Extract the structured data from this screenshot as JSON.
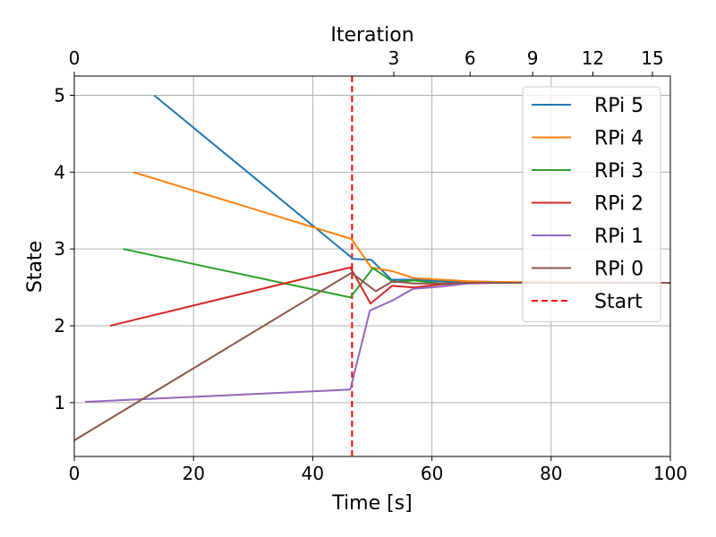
{
  "chart_data": {
    "type": "line",
    "title": "",
    "xlabel": "Time [s]",
    "ylabel": "State",
    "top_xlabel": "Iteration",
    "xlim": [
      0,
      100
    ],
    "ylim": [
      0.3,
      5.25
    ],
    "x_ticks": [
      0,
      20,
      40,
      60,
      80,
      100
    ],
    "y_ticks": [
      1,
      2,
      3,
      4,
      5
    ],
    "top_ticks": [
      {
        "label": "0",
        "time": 0
      },
      {
        "label": "3",
        "time": 53.6
      },
      {
        "label": "6",
        "time": 66.4
      },
      {
        "label": "9",
        "time": 76.9
      },
      {
        "label": "12",
        "time": 87.0
      },
      {
        "label": "15",
        "time": 97.0
      }
    ],
    "grid": true,
    "legend_position": "top-right",
    "series": [
      {
        "name": "RPi 5",
        "color": "#1f77b4",
        "x": [
          13.4,
          46.8,
          49.8,
          53.2,
          57.0,
          61.5,
          66.0,
          72.0,
          100
        ],
        "y": [
          5.0,
          2.87,
          2.86,
          2.6,
          2.6,
          2.58,
          2.57,
          2.56,
          2.56
        ]
      },
      {
        "name": "RPi 4",
        "color": "#ff7f0e",
        "x": [
          9.9,
          46.5,
          49.8,
          53.4,
          57.0,
          61.5,
          66.0,
          72.0,
          100
        ],
        "y": [
          4.0,
          3.13,
          2.76,
          2.71,
          2.62,
          2.6,
          2.58,
          2.57,
          2.56
        ]
      },
      {
        "name": "RPi 3",
        "color": "#2ca02c",
        "x": [
          8.2,
          46.3,
          50.1,
          53.5,
          57.0,
          61.5,
          66.0,
          100
        ],
        "y": [
          3.0,
          2.37,
          2.75,
          2.57,
          2.59,
          2.55,
          2.56,
          2.56
        ]
      },
      {
        "name": "RPi 2",
        "color": "#d62728",
        "x": [
          6.0,
          46.3,
          49.7,
          53.3,
          57.0,
          61.5,
          66.0,
          100
        ],
        "y": [
          2.0,
          2.76,
          2.29,
          2.52,
          2.5,
          2.54,
          2.56,
          2.56
        ]
      },
      {
        "name": "RPi 1",
        "color": "#9467bd",
        "x": [
          1.8,
          46.3,
          49.6,
          53.4,
          56.8,
          61.5,
          66.0,
          72.0,
          100
        ],
        "y": [
          1.01,
          1.17,
          2.2,
          2.33,
          2.48,
          2.51,
          2.55,
          2.56,
          2.56
        ]
      },
      {
        "name": "RPi 0",
        "color": "#8c564b",
        "x": [
          0,
          46.5,
          50.6,
          53.4,
          57.0,
          61.5,
          66.0,
          100
        ],
        "y": [
          0.51,
          2.69,
          2.45,
          2.58,
          2.55,
          2.55,
          2.56,
          2.56
        ]
      }
    ],
    "reference_line": {
      "name": "Start",
      "x": 46.6,
      "color": "#ff0000",
      "style": "dashed"
    }
  }
}
